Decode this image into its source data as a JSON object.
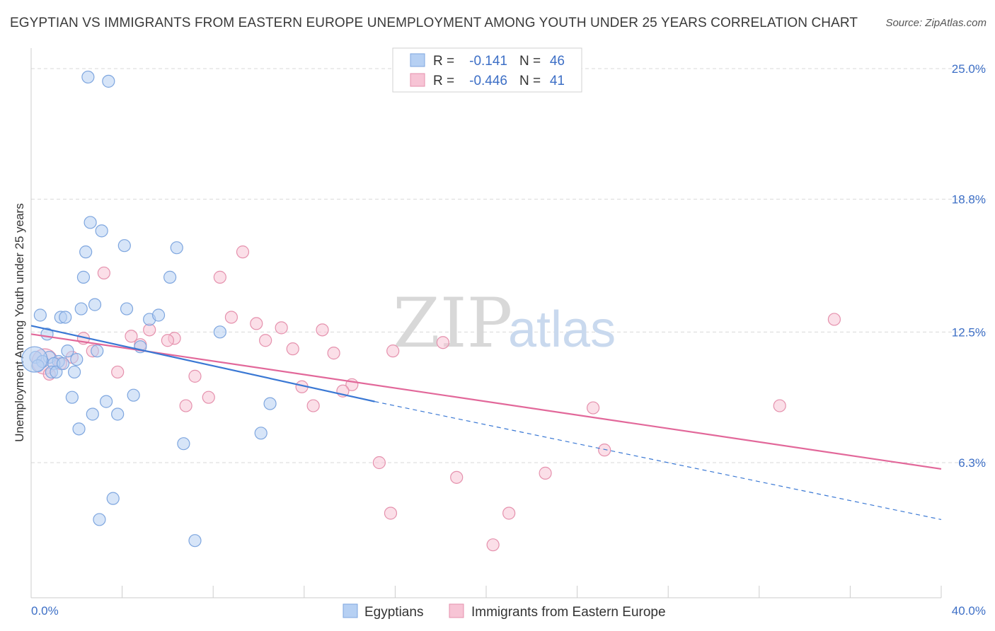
{
  "title": "EGYPTIAN VS IMMIGRANTS FROM EASTERN EUROPE UNEMPLOYMENT AMONG YOUTH UNDER 25 YEARS CORRELATION CHART",
  "source": "Source: ZipAtlas.com",
  "watermark": {
    "zip": "ZIP",
    "atlas": "atlas"
  },
  "colors": {
    "blue_fill": "#b6d0f3",
    "blue_stroke": "#7ea6df",
    "blue_line": "#3a78d4",
    "pink_fill": "#f7c4d5",
    "pink_stroke": "#e591ad",
    "pink_line": "#e2689a",
    "tick_text": "#3d6fc6",
    "grid": "#d9d9d9"
  },
  "legend": {
    "rows": [
      {
        "r_label": "R =",
        "r_value": "-0.141",
        "n_label": "N =",
        "n_value": "46"
      },
      {
        "r_label": "R =",
        "r_value": "-0.446",
        "n_label": "N =",
        "n_value": "41"
      }
    ]
  },
  "chart_data": {
    "type": "scatter",
    "title": "EGYPTIAN VS IMMIGRANTS FROM EASTERN EUROPE UNEMPLOYMENT AMONG YOUTH UNDER 25 YEARS CORRELATION CHART",
    "xlabel": "",
    "ylabel": "Unemployment Among Youth under 25 years",
    "xlim": [
      0,
      40
    ],
    "ylim": [
      0,
      26
    ],
    "x_tick_labels": [
      "0.0%",
      "40.0%"
    ],
    "y_ticks": [
      6.3,
      12.5,
      18.8,
      25.0
    ],
    "y_tick_labels": [
      "6.3%",
      "12.5%",
      "18.8%",
      "25.0%"
    ],
    "grid": true,
    "legend_position": "top-center",
    "series": [
      {
        "name": "Egyptians",
        "color": "#b6d0f3",
        "r": -0.141,
        "n": 46,
        "trend": {
          "x0": 0,
          "y0": 12.8,
          "x1": 15.1,
          "y1": 9.2,
          "dash_to_x": 40,
          "dash_to_y": 3.6
        },
        "points": [
          [
            2.5,
            24.6
          ],
          [
            3.4,
            24.4
          ],
          [
            2.6,
            17.7
          ],
          [
            3.1,
            17.3
          ],
          [
            2.4,
            16.3
          ],
          [
            4.1,
            16.6
          ],
          [
            6.4,
            16.5
          ],
          [
            2.3,
            15.1
          ],
          [
            6.1,
            15.1
          ],
          [
            2.8,
            13.8
          ],
          [
            2.2,
            13.6
          ],
          [
            4.2,
            13.6
          ],
          [
            0.4,
            13.3
          ],
          [
            1.3,
            13.2
          ],
          [
            1.5,
            13.2
          ],
          [
            5.2,
            13.1
          ],
          [
            5.6,
            13.3
          ],
          [
            8.3,
            12.5
          ],
          [
            0.7,
            12.4
          ],
          [
            2.9,
            11.6
          ],
          [
            4.8,
            11.8
          ],
          [
            0.2,
            11.3
          ],
          [
            0.8,
            11.3
          ],
          [
            1.6,
            11.6
          ],
          [
            1.2,
            11.1
          ],
          [
            0.5,
            11.1
          ],
          [
            1.0,
            11.0
          ],
          [
            0.3,
            10.9
          ],
          [
            0.9,
            10.6
          ],
          [
            1.1,
            10.6
          ],
          [
            1.9,
            10.6
          ],
          [
            1.8,
            9.4
          ],
          [
            3.3,
            9.2
          ],
          [
            4.5,
            9.5
          ],
          [
            10.5,
            9.1
          ],
          [
            2.7,
            8.6
          ],
          [
            3.8,
            8.6
          ],
          [
            2.1,
            7.9
          ],
          [
            10.1,
            7.7
          ],
          [
            6.7,
            7.2
          ],
          [
            3.6,
            4.6
          ],
          [
            3.0,
            3.6
          ],
          [
            7.2,
            2.6
          ],
          [
            0.15,
            11.2
          ],
          [
            1.4,
            11.0
          ],
          [
            2.0,
            11.2
          ]
        ],
        "point_size_note": "one larger circle near x=0.2"
      },
      {
        "name": "Immigrants from Eastern Europe",
        "color": "#f7c4d5",
        "r": -0.446,
        "n": 41,
        "trend": {
          "x0": 0,
          "y0": 12.4,
          "x1": 40,
          "y1": 6.0
        },
        "points": [
          [
            9.3,
            16.3
          ],
          [
            3.2,
            15.3
          ],
          [
            8.3,
            15.1
          ],
          [
            35.3,
            13.1
          ],
          [
            8.8,
            13.2
          ],
          [
            9.9,
            12.9
          ],
          [
            11.0,
            12.7
          ],
          [
            12.8,
            12.6
          ],
          [
            5.2,
            12.6
          ],
          [
            4.4,
            12.3
          ],
          [
            6.3,
            12.2
          ],
          [
            6.0,
            12.1
          ],
          [
            2.3,
            12.2
          ],
          [
            10.3,
            12.1
          ],
          [
            18.1,
            12.0
          ],
          [
            4.8,
            11.9
          ],
          [
            11.5,
            11.7
          ],
          [
            2.7,
            11.6
          ],
          [
            15.9,
            11.6
          ],
          [
            13.3,
            11.5
          ],
          [
            1.8,
            11.3
          ],
          [
            0.6,
            11.1
          ],
          [
            1.3,
            11.0
          ],
          [
            3.8,
            10.6
          ],
          [
            7.2,
            10.4
          ],
          [
            0.8,
            10.5
          ],
          [
            11.9,
            9.9
          ],
          [
            14.1,
            10.0
          ],
          [
            13.7,
            9.7
          ],
          [
            7.8,
            9.4
          ],
          [
            6.8,
            9.0
          ],
          [
            12.4,
            9.0
          ],
          [
            24.7,
            8.9
          ],
          [
            32.9,
            9.0
          ],
          [
            25.2,
            6.9
          ],
          [
            15.3,
            6.3
          ],
          [
            22.6,
            5.8
          ],
          [
            18.7,
            5.6
          ],
          [
            15.8,
            3.9
          ],
          [
            21.0,
            3.9
          ],
          [
            20.3,
            2.4
          ]
        ],
        "point_size_note": "one larger circle near x=0.6"
      }
    ]
  },
  "axis": {
    "y_ticks": [
      "25.0%",
      "18.8%",
      "12.5%",
      "6.3%"
    ],
    "x_ticks": [
      "0.0%",
      "40.0%"
    ]
  },
  "bottom_legend": {
    "items": [
      "Egyptians",
      "Immigrants from Eastern Europe"
    ]
  }
}
